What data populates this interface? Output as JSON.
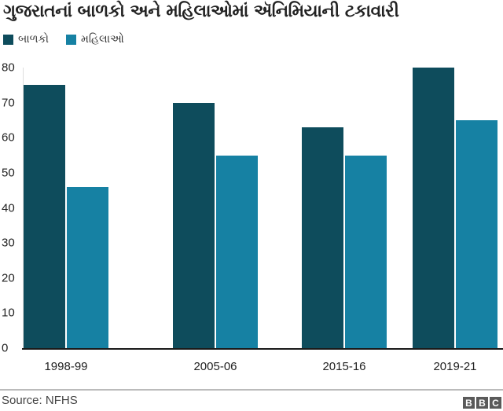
{
  "chart_data": {
    "type": "bar",
    "title": "ગુજરાતનાં બાળકો અને મહિલાઓમાં ઍનિમિયાની ટકાવારી",
    "categories": [
      "1998-99",
      "2005-06",
      "2015-16",
      "2019-21"
    ],
    "series": [
      {
        "name": "બાળકો",
        "color": "#0e4c5c",
        "values": [
          75,
          70,
          63,
          80
        ]
      },
      {
        "name": "મહિલાઓ",
        "color": "#1681a3",
        "values": [
          46,
          55,
          55,
          65
        ]
      }
    ],
    "xlabel": "",
    "ylabel": "",
    "ylim": [
      0,
      80
    ],
    "yticks": [
      0,
      10,
      20,
      30,
      40,
      50,
      60,
      70,
      80
    ],
    "grid": false,
    "legend_position": "top-left"
  },
  "header": {
    "title": "ગુજરાતનાં બાળકો અને મહિલાઓમાં ઍનિમિયાની ટકાવારી"
  },
  "legend": [
    {
      "label": "બાળકો",
      "color": "#0e4c5c"
    },
    {
      "label": "મહિલાઓ",
      "color": "#1681a3"
    }
  ],
  "footer": {
    "source": "Source: NFHS",
    "logo": [
      "B",
      "B",
      "C"
    ]
  }
}
